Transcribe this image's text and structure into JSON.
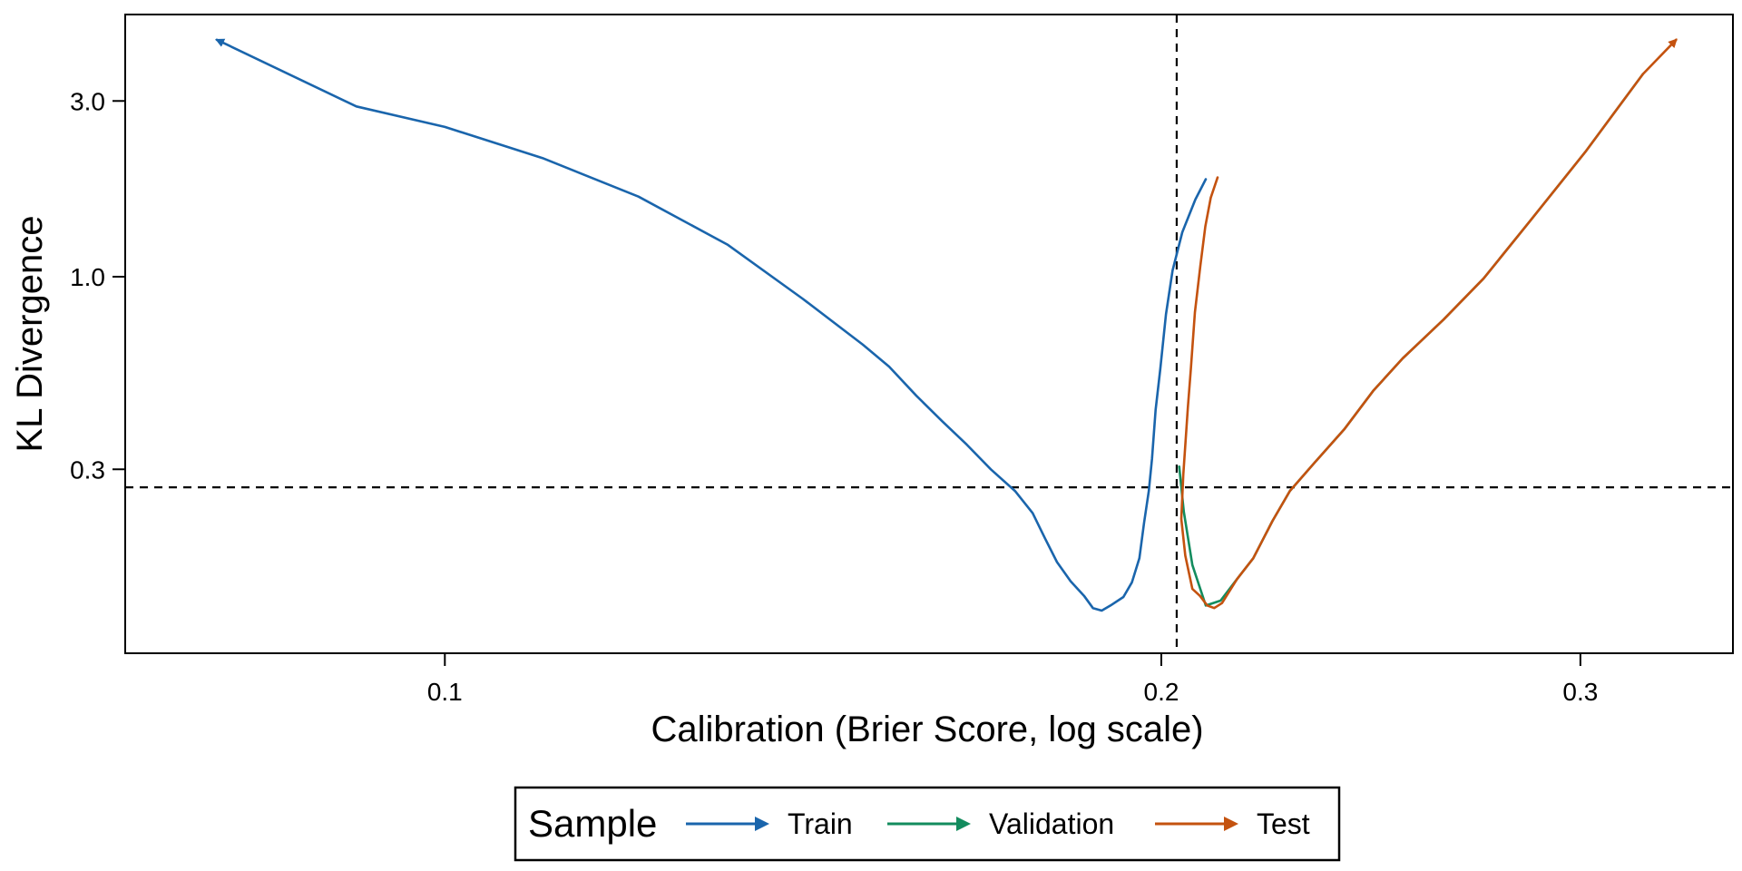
{
  "chart_data": {
    "type": "line",
    "xlabel": "Calibration (Brier Score, log scale)",
    "ylabel": "KL Divergence",
    "x_scale": "log",
    "y_scale": "log",
    "xlim": [
      0.0734,
      0.3477
    ],
    "ylim": [
      0.095,
      5.15
    ],
    "x_ticks": [
      0.1,
      0.2,
      0.3
    ],
    "x_tick_labels": [
      "0.1",
      "0.2",
      "0.3"
    ],
    "y_ticks": [
      0.3,
      1.0,
      3.0
    ],
    "y_tick_labels": [
      "0.3",
      "1.0",
      "3.0"
    ],
    "reference_lines": {
      "vertical_x": 0.203,
      "horizontal_y": 0.268
    },
    "legend": {
      "title": "Sample",
      "placement": "bottom"
    },
    "series": [
      {
        "name": "Train",
        "color": "#1A65AC",
        "arrow": "start",
        "points": [
          [
            0.0802,
            4.4
          ],
          [
            0.0918,
            2.9
          ],
          [
            0.1,
            2.55
          ],
          [
            0.1099,
            2.1
          ],
          [
            0.1206,
            1.65
          ],
          [
            0.1315,
            1.22
          ],
          [
            0.1414,
            0.87
          ],
          [
            0.1498,
            0.655
          ],
          [
            0.1537,
            0.57
          ],
          [
            0.1578,
            0.475
          ],
          [
            0.1618,
            0.405
          ],
          [
            0.1657,
            0.35
          ],
          [
            0.1696,
            0.3
          ],
          [
            0.1736,
            0.262
          ],
          [
            0.1766,
            0.228
          ],
          [
            0.1787,
            0.195
          ],
          [
            0.1808,
            0.168
          ],
          [
            0.1832,
            0.149
          ],
          [
            0.1856,
            0.136
          ],
          [
            0.1872,
            0.126
          ],
          [
            0.1888,
            0.124
          ],
          [
            0.1904,
            0.128
          ],
          [
            0.1928,
            0.135
          ],
          [
            0.1944,
            0.148
          ],
          [
            0.1958,
            0.172
          ],
          [
            0.1967,
            0.215
          ],
          [
            0.1976,
            0.262
          ],
          [
            0.1982,
            0.32
          ],
          [
            0.1989,
            0.435
          ],
          [
            0.1998,
            0.56
          ],
          [
            0.2009,
            0.79
          ],
          [
            0.2022,
            1.04
          ],
          [
            0.2041,
            1.32
          ],
          [
            0.2067,
            1.62
          ],
          [
            0.2088,
            1.84
          ]
        ]
      },
      {
        "name": "Validation",
        "color": "#138C5E",
        "arrow": "none",
        "points": [
          [
            0.2035,
            0.305
          ],
          [
            0.2044,
            0.23
          ],
          [
            0.2061,
            0.165
          ],
          [
            0.2088,
            0.128
          ],
          [
            0.2118,
            0.132
          ],
          [
            0.2152,
            0.151
          ],
          [
            0.2186,
            0.172
          ],
          [
            0.2227,
            0.217
          ],
          [
            0.2265,
            0.262
          ],
          [
            0.2322,
            0.315
          ],
          [
            0.2387,
            0.385
          ],
          [
            0.2455,
            0.49
          ],
          [
            0.2526,
            0.6
          ],
          [
            0.2628,
            0.765
          ],
          [
            0.2732,
            0.99
          ],
          [
            0.2858,
            1.42
          ],
          [
            0.3014,
            2.18
          ],
          [
            0.3187,
            3.55
          ]
        ]
      },
      {
        "name": "Test",
        "color": "#C4520F",
        "arrow": "end",
        "points": [
          [
            0.2112,
            1.86
          ],
          [
            0.2098,
            1.64
          ],
          [
            0.2087,
            1.37
          ],
          [
            0.2077,
            1.07
          ],
          [
            0.2066,
            0.8
          ],
          [
            0.2058,
            0.56
          ],
          [
            0.2052,
            0.44
          ],
          [
            0.2043,
            0.29
          ],
          [
            0.2039,
            0.22
          ],
          [
            0.2047,
            0.175
          ],
          [
            0.2061,
            0.142
          ],
          [
            0.2076,
            0.136
          ],
          [
            0.2091,
            0.128
          ],
          [
            0.2105,
            0.126
          ],
          [
            0.2121,
            0.13
          ],
          [
            0.2152,
            0.151
          ],
          [
            0.2186,
            0.172
          ],
          [
            0.2227,
            0.217
          ],
          [
            0.2265,
            0.262
          ],
          [
            0.2322,
            0.315
          ],
          [
            0.2387,
            0.385
          ],
          [
            0.2455,
            0.49
          ],
          [
            0.2526,
            0.6
          ],
          [
            0.2628,
            0.765
          ],
          [
            0.2732,
            0.99
          ],
          [
            0.2858,
            1.42
          ],
          [
            0.3014,
            2.18
          ],
          [
            0.3187,
            3.55
          ],
          [
            0.3291,
            4.4
          ]
        ]
      }
    ]
  }
}
